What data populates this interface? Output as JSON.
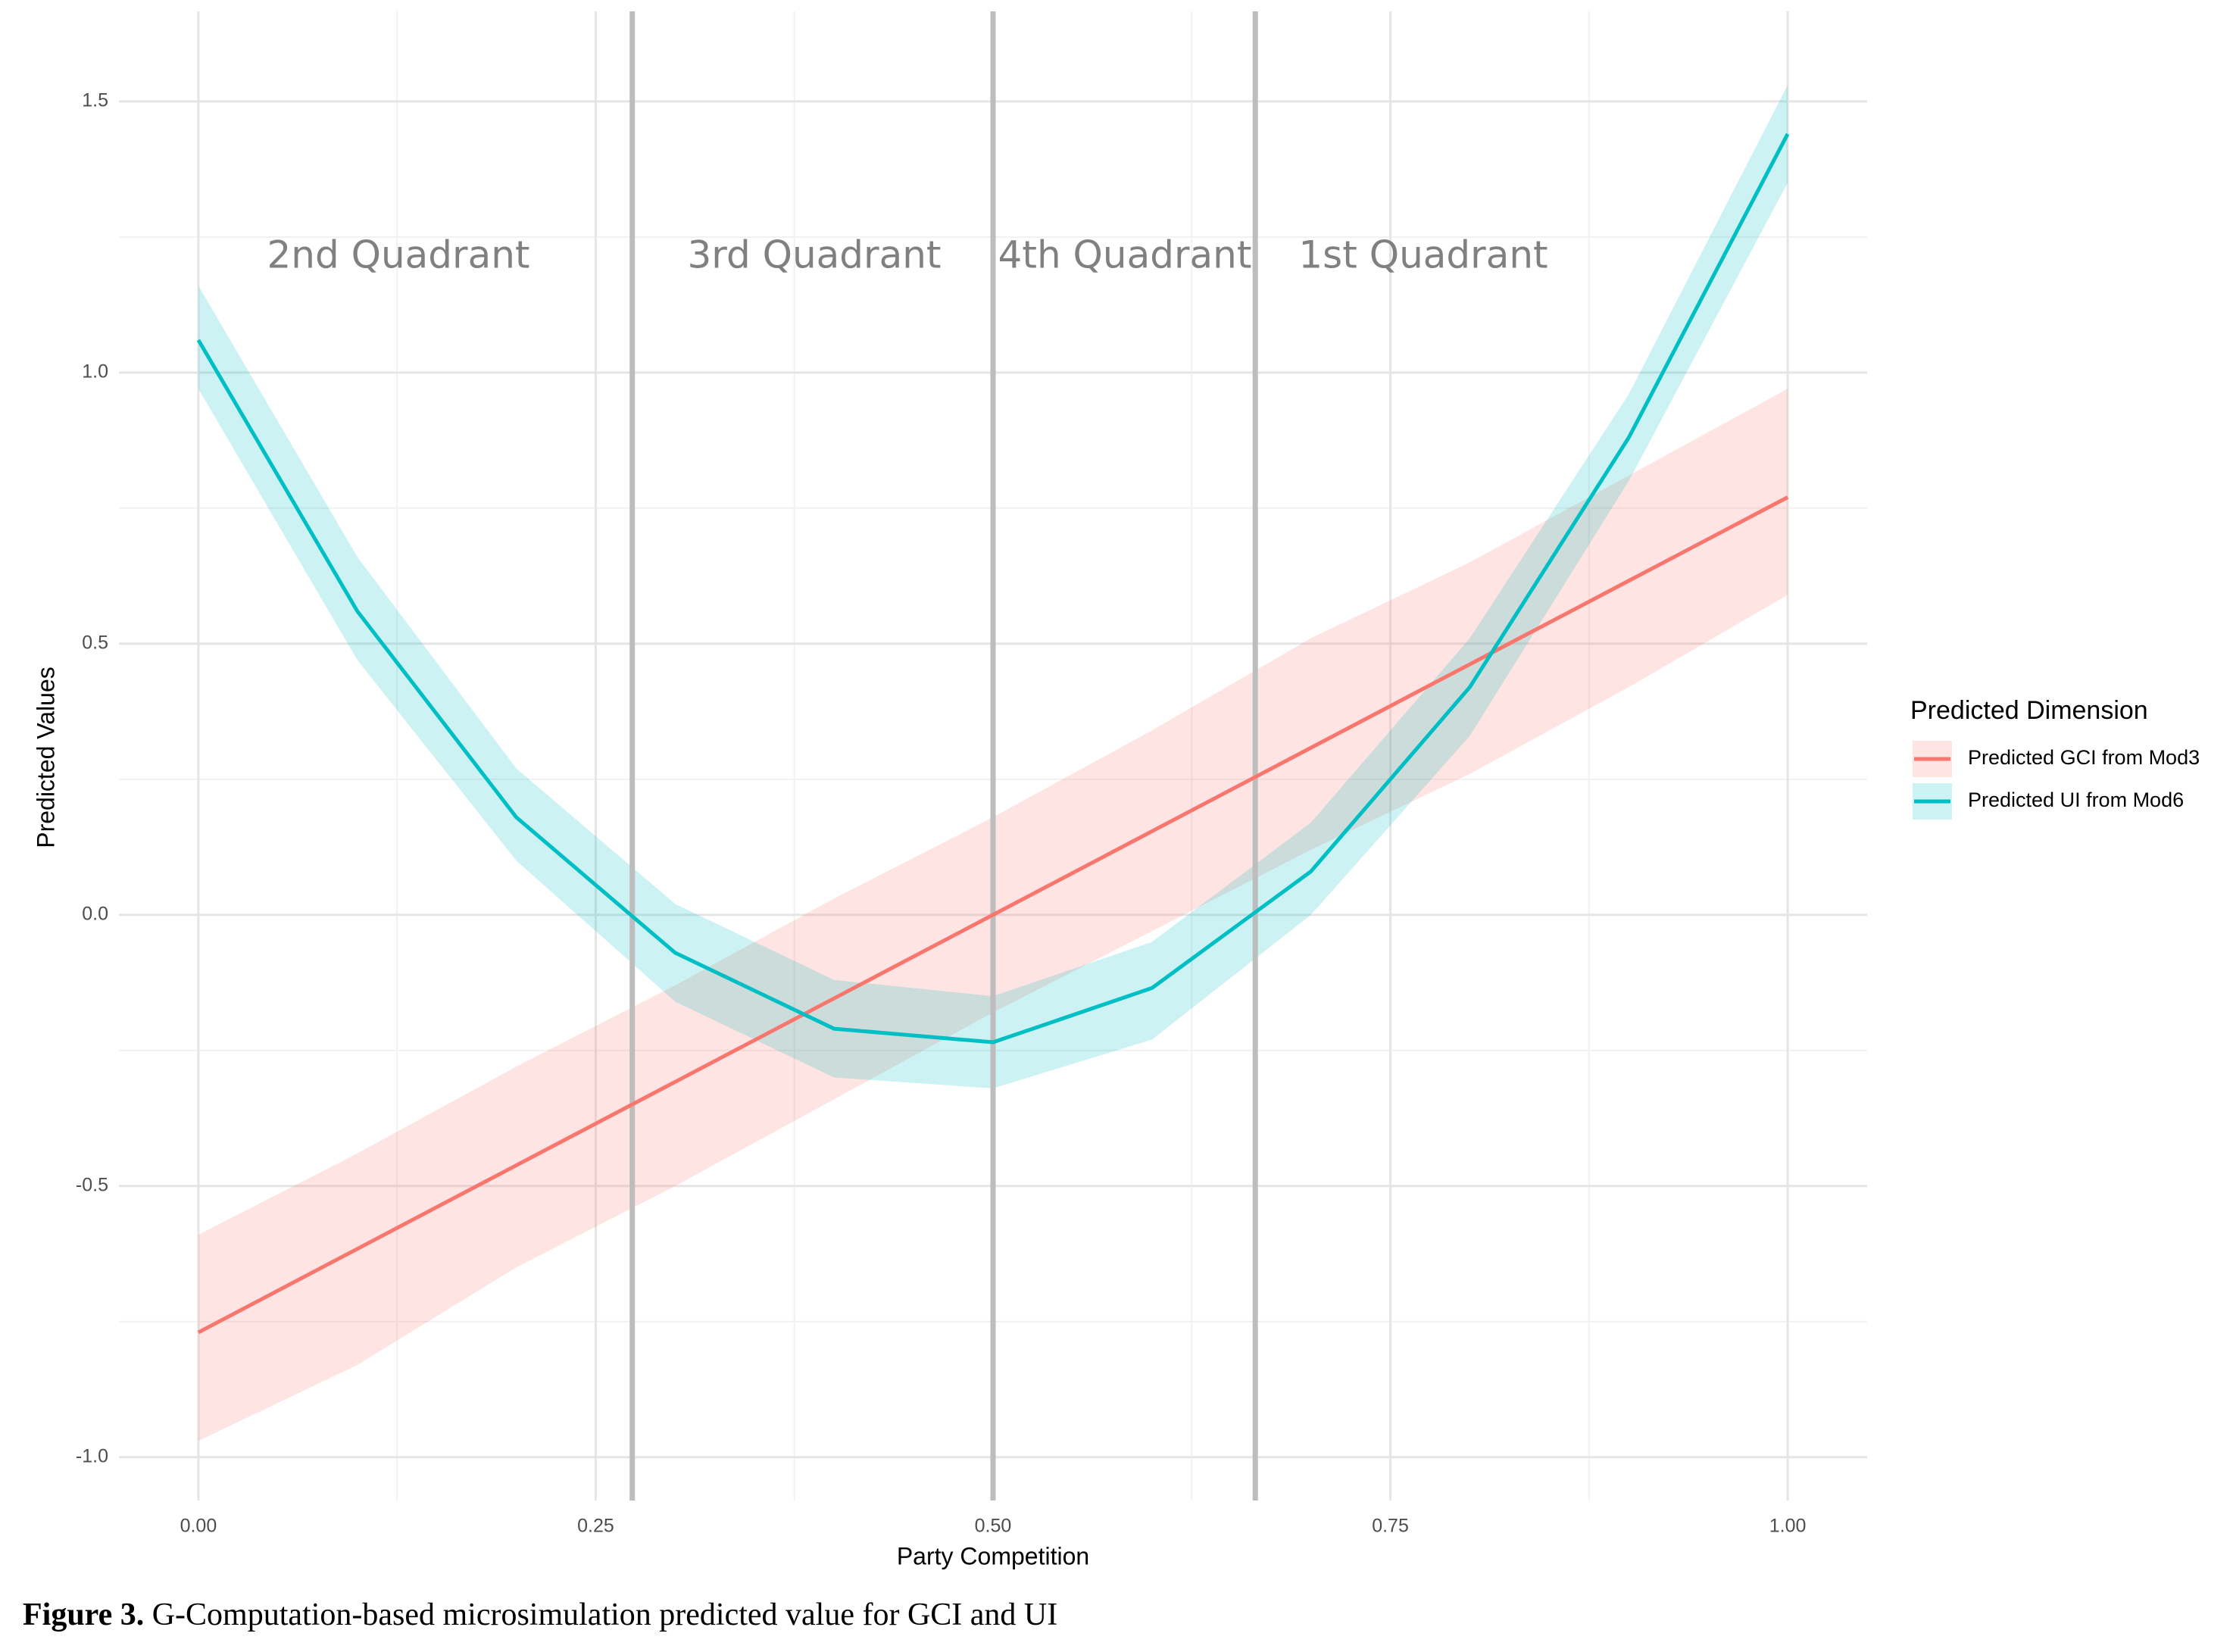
{
  "chart_data": {
    "type": "line",
    "x_label": "Party Competition",
    "y_label": "Predicted Values",
    "x": [
      0,
      0.1,
      0.2,
      0.3,
      0.4,
      0.5,
      0.6,
      0.7,
      0.8,
      0.9,
      1.0
    ],
    "series": [
      {
        "name": "Predicted GCI from Mod3",
        "color": "#F8766D",
        "values": [
          -0.77,
          -0.616,
          -0.462,
          -0.308,
          -0.154,
          0,
          0.154,
          0.308,
          0.462,
          0.616,
          0.77
        ],
        "upper": [
          -0.59,
          -0.44,
          -0.28,
          -0.13,
          0.03,
          0.18,
          0.34,
          0.51,
          0.65,
          0.81,
          0.97
        ],
        "lower": [
          -0.97,
          -0.83,
          -0.65,
          -0.5,
          -0.34,
          -0.18,
          -0.03,
          0.12,
          0.26,
          0.42,
          0.59
        ]
      },
      {
        "name": "Predicted UI from Mod6",
        "color": "#00BFC4",
        "values": [
          1.06,
          0.56,
          0.18,
          -0.07,
          -0.21,
          -0.235,
          -0.135,
          0.08,
          0.42,
          0.88,
          1.44
        ],
        "upper": [
          1.16,
          0.66,
          0.27,
          0.02,
          -0.12,
          -0.15,
          -0.05,
          0.17,
          0.51,
          0.96,
          1.53
        ],
        "lower": [
          0.97,
          0.47,
          0.1,
          -0.16,
          -0.3,
          -0.32,
          -0.23,
          0.0,
          0.33,
          0.8,
          1.35
        ]
      }
    ],
    "vlines": [
      0.273,
      0.5,
      0.665
    ],
    "annotations": [
      "2nd Quadrant",
      "3rd Quadrant",
      "4th Quadrant",
      "1st Quadrant"
    ],
    "legend_title": "Predicted Dimension",
    "xlim": [
      -0.05,
      1.05
    ],
    "xticks": [
      {
        "value": 0,
        "label": "0.00"
      },
      0.25,
      {
        "value": 0.5,
        "label": "0.50"
      },
      0.75,
      {
        "value": 1,
        "label": "1.00"
      }
    ],
    "ylim": [
      -1.08,
      1.666
    ],
    "yticks": [
      {
        "value": -1,
        "label": "-1.0"
      },
      -0.5,
      {
        "value": 0,
        "label": "0.0"
      },
      0.5,
      {
        "value": 1,
        "label": "1.0"
      },
      1.5
    ],
    "grid": true,
    "caption": {
      "label": "Figure 3.",
      "text": " G-Computation-based microsimulation predicted value for GCI and UI"
    }
  }
}
